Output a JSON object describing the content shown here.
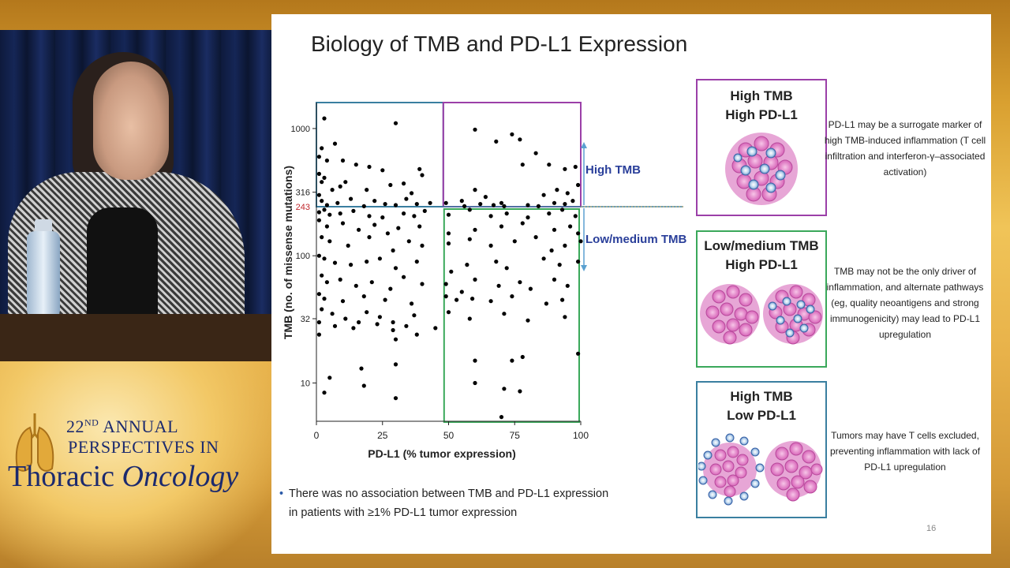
{
  "conference": {
    "line1_number": "22",
    "line1_sup": "ND",
    "line1_rest": " ANNUAL",
    "line2": "PERSPECTIVES IN",
    "line3_a": "Thoracic ",
    "line3_b": "Oncology"
  },
  "slide": {
    "title": "Biology of TMB and PD-L1 Expression",
    "slide_number": "16",
    "bullet": "There was no association between TMB and PD-L1 expression in patients with ≥1% PD-L1 tumor expression",
    "arrow_labels": {
      "high": "High TMB",
      "low": "Low/medium TMB"
    },
    "panels": [
      {
        "title_line1": "High TMB",
        "title_line2": "High PD-L1",
        "color": "#9b3fa8",
        "description": "PD-L1 may be a surrogate marker of high TMB-induced inflammation (T cell infiltration and interferon-γ–associated activation)"
      },
      {
        "title_line1": "Low/medium TMB",
        "title_line2": "High PD-L1",
        "color": "#3aa85a",
        "description": "TMB may not be the only driver of inflammation, and alternate pathways (eg, quality neoantigens and strong immunogenicity) may lead to PD-L1 upregulation"
      },
      {
        "title_line1": "High TMB",
        "title_line2": "Low PD-L1",
        "color": "#3a7fa0",
        "description": "Tumors may have T cells excluded, preventing inflammation with lack of PD-L1 upregulation"
      }
    ]
  },
  "chart_data": {
    "type": "scatter",
    "xlabel": "PD-L1 (% tumor expression)",
    "ylabel": "TMB  (no. of missense mutations)",
    "xlim": [
      0,
      100
    ],
    "ylim": [
      5,
      1600
    ],
    "yscale": "log",
    "x_ticks": [
      0,
      25,
      50,
      75,
      100
    ],
    "y_ticks": [
      10,
      32,
      100,
      316,
      1000
    ],
    "threshold": {
      "value": 243,
      "label": "243",
      "color": "#c0282d"
    },
    "regions": [
      {
        "x": [
          0,
          48
        ],
        "y": [
          243,
          1600
        ],
        "color": "#3a7fa0"
      },
      {
        "x": [
          48,
          100
        ],
        "y": [
          243,
          1600
        ],
        "color": "#9b3fa8"
      },
      {
        "x": [
          48,
          100
        ],
        "y": [
          5,
          243
        ],
        "color": "#3aa85a"
      }
    ],
    "series": [
      {
        "color": "#000000",
        "points": [
          [
            3,
            1200
          ],
          [
            30,
            1100
          ],
          [
            60,
            980
          ],
          [
            74,
            900
          ],
          [
            68,
            790
          ],
          [
            77,
            820
          ],
          [
            2,
            700
          ],
          [
            7,
            760
          ],
          [
            1,
            600
          ],
          [
            4,
            560
          ],
          [
            10,
            560
          ],
          [
            15,
            520
          ],
          [
            20,
            500
          ],
          [
            25,
            470
          ],
          [
            39,
            480
          ],
          [
            40,
            430
          ],
          [
            78,
            520
          ],
          [
            83,
            640
          ],
          [
            88,
            520
          ],
          [
            94,
            480
          ],
          [
            98,
            500
          ],
          [
            1,
            440
          ],
          [
            2,
            380
          ],
          [
            3,
            410
          ],
          [
            6,
            330
          ],
          [
            9,
            350
          ],
          [
            11,
            380
          ],
          [
            19,
            330
          ],
          [
            28,
            360
          ],
          [
            33,
            370
          ],
          [
            36,
            310
          ],
          [
            49,
            260
          ],
          [
            55,
            270
          ],
          [
            60,
            330
          ],
          [
            64,
            290
          ],
          [
            70,
            260
          ],
          [
            86,
            300
          ],
          [
            91,
            330
          ],
          [
            95,
            310
          ],
          [
            97,
            270
          ],
          [
            99,
            360
          ],
          [
            1,
            300
          ],
          [
            2,
            270
          ],
          [
            4,
            250
          ],
          [
            8,
            260
          ],
          [
            13,
            280
          ],
          [
            18,
            245
          ],
          [
            22,
            270
          ],
          [
            26,
            255
          ],
          [
            30,
            250
          ],
          [
            34,
            280
          ],
          [
            38,
            255
          ],
          [
            43,
            260
          ],
          [
            56,
            245
          ],
          [
            62,
            255
          ],
          [
            67,
            250
          ],
          [
            71,
            245
          ],
          [
            80,
            250
          ],
          [
            84,
            245
          ],
          [
            90,
            260
          ],
          [
            94,
            255
          ],
          [
            1,
            220
          ],
          [
            3,
            230
          ],
          [
            5,
            210
          ],
          [
            9,
            215
          ],
          [
            14,
            225
          ],
          [
            20,
            205
          ],
          [
            25,
            200
          ],
          [
            33,
            215
          ],
          [
            37,
            205
          ],
          [
            41,
            225
          ],
          [
            50,
            210
          ],
          [
            58,
            230
          ],
          [
            66,
            205
          ],
          [
            72,
            215
          ],
          [
            80,
            200
          ],
          [
            88,
            215
          ],
          [
            93,
            230
          ],
          [
            98,
            205
          ],
          [
            1,
            190
          ],
          [
            4,
            170
          ],
          [
            10,
            180
          ],
          [
            16,
            160
          ],
          [
            22,
            175
          ],
          [
            27,
            150
          ],
          [
            31,
            165
          ],
          [
            39,
            170
          ],
          [
            50,
            150
          ],
          [
            60,
            160
          ],
          [
            70,
            170
          ],
          [
            78,
            180
          ],
          [
            90,
            160
          ],
          [
            96,
            170
          ],
          [
            99,
            150
          ],
          [
            2,
            140
          ],
          [
            5,
            130
          ],
          [
            12,
            120
          ],
          [
            20,
            140
          ],
          [
            29,
            110
          ],
          [
            35,
            130
          ],
          [
            40,
            120
          ],
          [
            50,
            125
          ],
          [
            58,
            135
          ],
          [
            66,
            120
          ],
          [
            75,
            130
          ],
          [
            83,
            140
          ],
          [
            89,
            110
          ],
          [
            94,
            120
          ],
          [
            100,
            130
          ],
          [
            1,
            100
          ],
          [
            3,
            95
          ],
          [
            7,
            88
          ],
          [
            13,
            85
          ],
          [
            19,
            90
          ],
          [
            24,
            95
          ],
          [
            30,
            80
          ],
          [
            38,
            90
          ],
          [
            51,
            75
          ],
          [
            57,
            85
          ],
          [
            68,
            90
          ],
          [
            72,
            80
          ],
          [
            86,
            95
          ],
          [
            92,
            85
          ],
          [
            99,
            90
          ],
          [
            2,
            70
          ],
          [
            4,
            62
          ],
          [
            9,
            65
          ],
          [
            15,
            58
          ],
          [
            21,
            62
          ],
          [
            28,
            55
          ],
          [
            33,
            68
          ],
          [
            40,
            60
          ],
          [
            49,
            60
          ],
          [
            55,
            52
          ],
          [
            60,
            65
          ],
          [
            69,
            58
          ],
          [
            77,
            62
          ],
          [
            81,
            55
          ],
          [
            90,
            65
          ],
          [
            95,
            58
          ],
          [
            1,
            50
          ],
          [
            3,
            46
          ],
          [
            10,
            44
          ],
          [
            18,
            48
          ],
          [
            26,
            45
          ],
          [
            36,
            42
          ],
          [
            49,
            48
          ],
          [
            53,
            45
          ],
          [
            59,
            46
          ],
          [
            66,
            44
          ],
          [
            74,
            48
          ],
          [
            87,
            42
          ],
          [
            93,
            45
          ],
          [
            2,
            38
          ],
          [
            6,
            35
          ],
          [
            11,
            32
          ],
          [
            16,
            30
          ],
          [
            19,
            36
          ],
          [
            24,
            33
          ],
          [
            29,
            30
          ],
          [
            37,
            34
          ],
          [
            50,
            36
          ],
          [
            58,
            32
          ],
          [
            71,
            35
          ],
          [
            80,
            31
          ],
          [
            94,
            33
          ],
          [
            1,
            30
          ],
          [
            7,
            28
          ],
          [
            14,
            27
          ],
          [
            23,
            29
          ],
          [
            29,
            26
          ],
          [
            34,
            28
          ],
          [
            45,
            27
          ],
          [
            1,
            24
          ],
          [
            30,
            22
          ],
          [
            38,
            24
          ],
          [
            60,
            15
          ],
          [
            74,
            15
          ],
          [
            78,
            16
          ],
          [
            99,
            17
          ],
          [
            30,
            14
          ],
          [
            17,
            13
          ],
          [
            5,
            11
          ],
          [
            60,
            10
          ],
          [
            71,
            9
          ],
          [
            18,
            9.5
          ],
          [
            77,
            8.6
          ],
          [
            3,
            8.4
          ],
          [
            30,
            7.6
          ],
          [
            70,
            5.4
          ]
        ]
      }
    ]
  }
}
